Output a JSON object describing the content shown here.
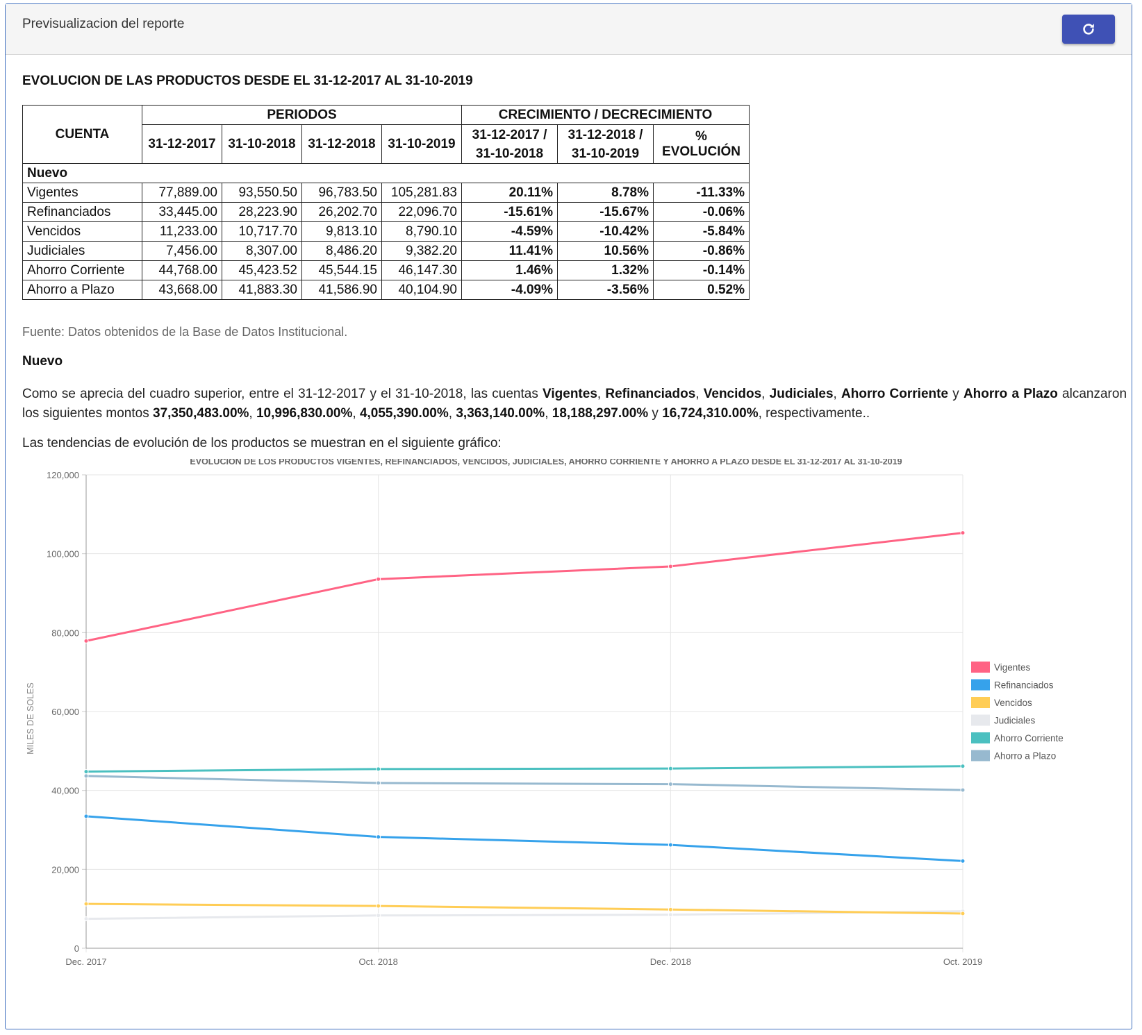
{
  "header": {
    "title": "Previsualizacion del reporte",
    "refresh_icon": "refresh-icon"
  },
  "report": {
    "title": "EVOLUCION DE LAS PRODUCTOS DESDE EL 31-12-2017 AL 31-10-2019",
    "table": {
      "col_cuenta": "CUENTA",
      "col_periodos": "PERIODOS",
      "col_crecimiento": "CRECIMIENTO / DECRECIMIENTO",
      "periods": [
        "31-12-2017",
        "31-10-2018",
        "31-12-2018",
        "31-10-2019"
      ],
      "growth_headers": [
        {
          "line1": "31-12-2017 /",
          "line2": "31-10-2018"
        },
        {
          "line1": "31-12-2018 /",
          "line2": "31-10-2019"
        },
        {
          "line1": "% EVOLUCIÓN",
          "line2": ""
        }
      ],
      "group": "Nuevo",
      "rows": [
        {
          "name": "Vigentes",
          "values": [
            "77,889.00",
            "93,550.50",
            "96,783.50",
            "105,281.83"
          ],
          "growth": [
            "20.11%",
            "8.78%",
            "-11.33%"
          ]
        },
        {
          "name": "Refinanciados",
          "values": [
            "33,445.00",
            "28,223.90",
            "26,202.70",
            "22,096.70"
          ],
          "growth": [
            "-15.61%",
            "-15.67%",
            "-0.06%"
          ]
        },
        {
          "name": "Vencidos",
          "values": [
            "11,233.00",
            "10,717.70",
            "9,813.10",
            "8,790.10"
          ],
          "growth": [
            "-4.59%",
            "-10.42%",
            "-5.84%"
          ]
        },
        {
          "name": "Judiciales",
          "values": [
            "7,456.00",
            "8,307.00",
            "8,486.20",
            "9,382.20"
          ],
          "growth": [
            "11.41%",
            "10.56%",
            "-0.86%"
          ]
        },
        {
          "name": "Ahorro Corriente",
          "values": [
            "44,768.00",
            "45,423.52",
            "45,544.15",
            "46,147.30"
          ],
          "growth": [
            "1.46%",
            "1.32%",
            "-0.14%"
          ]
        },
        {
          "name": "Ahorro a Plazo",
          "values": [
            "43,668.00",
            "41,883.30",
            "41,586.90",
            "40,104.90"
          ],
          "growth": [
            "-4.09%",
            "-3.56%",
            "0.52%"
          ]
        }
      ]
    },
    "source": "Fuente: Datos obtenidos de la Base de Datos Institucional.",
    "section_title": "Nuevo",
    "paragraph": {
      "p1": "Como se aprecia del cuadro superior, entre el 31-12-2017 y el 31-10-2018, las cuentas ",
      "a1": "Vigentes",
      "a2": "Refinanciados",
      "a3": "Vencidos",
      "a4": "Judiciales",
      "a5": "Ahorro Corriente",
      "a6": "Ahorro a Plazo",
      "sep": ", ",
      "y": " y ",
      "p2": " alcanzaron los siguientes montos ",
      "m1": "37,350,483.00%",
      "m2": "10,996,830.00%",
      "m3": "4,055,390.00%",
      "m4": "3,363,140.00%",
      "m5": "18,188,297.00%",
      "m6": "16,724,310.00%",
      "p3": ", respectivamente.."
    },
    "paragraph2": "Las tendencias de evolución de los productos se muestran en el siguiente gráfico:"
  },
  "chart_data": {
    "type": "line",
    "title": "EVOLUCION DE LOS PRODUCTOS VIGENTES, REFINANCIADOS, VENCIDOS, JUDICIALES, AHORRO CORRIENTE Y AHORRO A PLAZO DESDE EL 31-12-2017 AL 31-10-2019",
    "ylabel": "MILES DE SOLES",
    "xlabel": "",
    "categories": [
      "Dec. 2017",
      "Oct. 2018",
      "Dec. 2018",
      "Oct. 2019"
    ],
    "ylim": [
      0,
      120000
    ],
    "yticks": [
      0,
      20000,
      40000,
      60000,
      80000,
      100000,
      120000
    ],
    "ytick_labels": [
      "0",
      "20,000",
      "40,000",
      "60,000",
      "80,000",
      "100,000",
      "120,000"
    ],
    "grid": true,
    "legend": "right",
    "series": [
      {
        "name": "Vigentes",
        "color": "#ff6384",
        "values": [
          77889.0,
          93550.5,
          96783.5,
          105281.83
        ]
      },
      {
        "name": "Refinanciados",
        "color": "#36a2eb",
        "values": [
          33445.0,
          28223.9,
          26202.7,
          22096.7
        ]
      },
      {
        "name": "Vencidos",
        "color": "#ffcd56",
        "values": [
          11233.0,
          10717.7,
          9813.1,
          8790.1
        ]
      },
      {
        "name": "Judiciales",
        "color": "#e7e9ed",
        "values": [
          7456.0,
          8307.0,
          8486.2,
          9382.2
        ]
      },
      {
        "name": "Ahorro Corriente",
        "color": "#4bc0c0",
        "values": [
          44768.0,
          45423.52,
          45544.15,
          46147.3
        ]
      },
      {
        "name": "Ahorro a Plazo",
        "color": "#97b9cf",
        "values": [
          43668.0,
          41883.3,
          41586.9,
          40104.9
        ]
      }
    ]
  }
}
